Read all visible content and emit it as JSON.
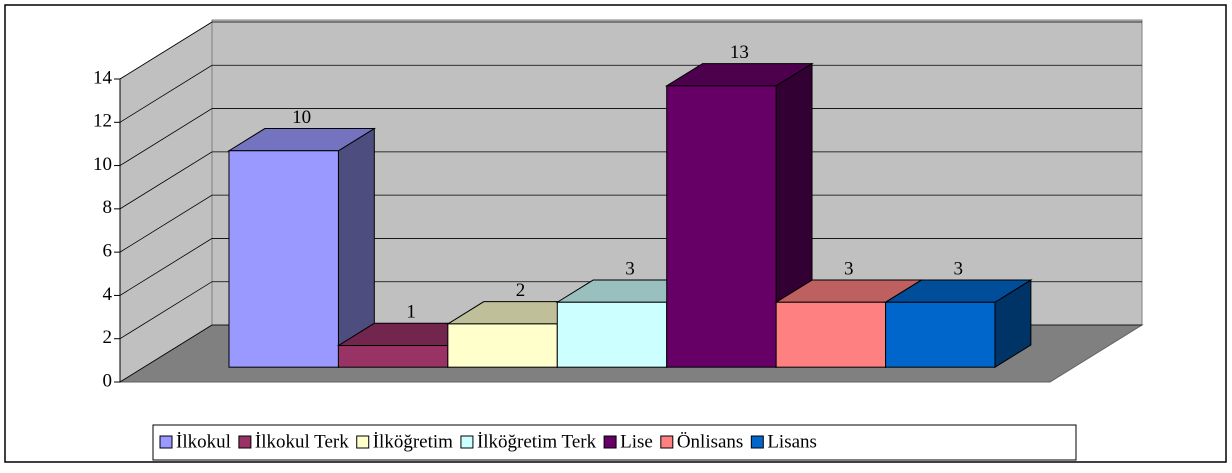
{
  "chart_data": {
    "type": "bar",
    "categories": [
      "İlkokul",
      "İlkokul Terk",
      "İlköğretim",
      "İlköğretim Terk",
      "Lise",
      "Önlisans",
      "Lisans"
    ],
    "values": [
      10,
      1,
      2,
      3,
      13,
      3,
      3
    ],
    "colors": [
      "#9999ff",
      "#993366",
      "#ffffcc",
      "#ccffff",
      "#660066",
      "#ff8080",
      "#0066cc"
    ],
    "ylim": [
      0,
      14
    ],
    "yticks": [
      0,
      2,
      4,
      6,
      8,
      10,
      12,
      14
    ],
    "grid": true,
    "legend": "bottom"
  }
}
